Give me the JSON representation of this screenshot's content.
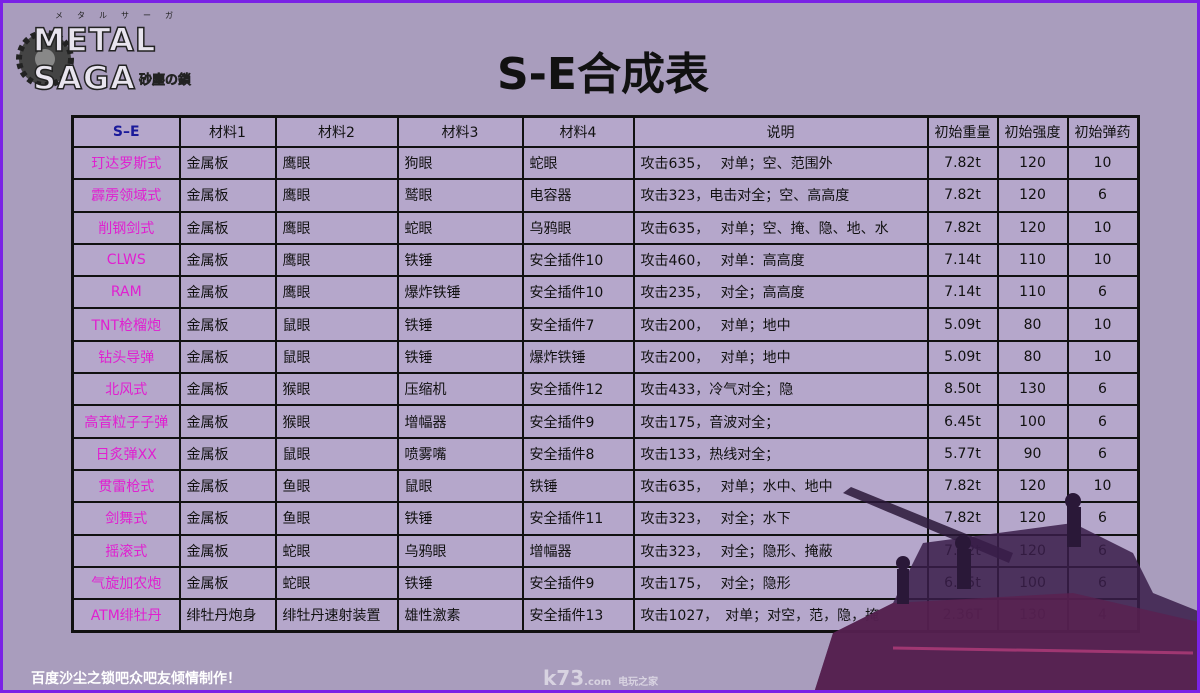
{
  "logo": {
    "text": "METAL SAGA",
    "sub": "砂塵の鎖",
    "kana": "メタルサーガ"
  },
  "title": "S-E合成表",
  "table": {
    "headers": [
      "S–E",
      "材料1",
      "材料2",
      "材料3",
      "材料4",
      "说明",
      "初始重量",
      "初始强度",
      "初始弹药"
    ],
    "rows": [
      [
        "玎达罗斯式",
        "金属板",
        "鹰眼",
        "狗眼",
        "蛇眼",
        "攻击635，　 对单；空、范围外",
        "7.82t",
        "120",
        "10"
      ],
      [
        "霹雳领域式",
        "金属板",
        "鹰眼",
        "鹫眼",
        "电容器",
        "攻击323，电击对全；空、高高度",
        "7.82t",
        "120",
        "6"
      ],
      [
        "削钢剑式",
        "金属板",
        "鹰眼",
        "蛇眼",
        "乌鸦眼",
        "攻击635，　 对单；空、掩、隐、地、水",
        "7.82t",
        "120",
        "10"
      ],
      [
        "CLWS",
        "金属板",
        "鹰眼",
        "铁锤",
        "安全插件10",
        "攻击460，　 对单：高高度",
        "7.14t",
        "110",
        "10"
      ],
      [
        "RAM",
        "金属板",
        "鹰眼",
        "爆炸铁锤",
        "安全插件10",
        "攻击235，　 对全；高高度",
        "7.14t",
        "110",
        "6"
      ],
      [
        "TNT枪榴炮",
        "金属板",
        "鼠眼",
        "铁锤",
        "安全插件7",
        "攻击200，　 对单；地中",
        "5.09t",
        "80",
        "10"
      ],
      [
        "钻头导弹",
        "金属板",
        "鼠眼",
        "铁锤",
        "爆炸铁锤",
        "攻击200，　 对单；地中",
        "5.09t",
        "80",
        "10"
      ],
      [
        "北风式",
        "金属板",
        "猴眼",
        "压缩机",
        "安全插件12",
        "攻击433，冷气对全；隐",
        "8.50t",
        "130",
        "6"
      ],
      [
        "高音粒子子弹",
        "金属板",
        "猴眼",
        "增幅器",
        "安全插件9",
        "攻击175，音波对全；",
        "6.45t",
        "100",
        "6"
      ],
      [
        "日炙弹XX",
        "金属板",
        "鼠眼",
        "喷雾嘴",
        "安全插件8",
        "攻击133，热线对全；",
        "5.77t",
        "90",
        "6"
      ],
      [
        "贯雷枪式",
        "金属板",
        "鱼眼",
        "鼠眼",
        "铁锤",
        "攻击635，　 对单；水中、地中",
        "7.82t",
        "120",
        "10"
      ],
      [
        "剑舞式",
        "金属板",
        "鱼眼",
        "铁锤",
        "安全插件11",
        "攻击323，　 对全；水下",
        "7.82t",
        "120",
        "6"
      ],
      [
        "摇滚式",
        "金属板",
        "蛇眼",
        "乌鸦眼",
        "增幅器",
        "攻击323，　 对全；隐形、掩蔽",
        "7.82t",
        "120",
        "6"
      ],
      [
        "气旋加农炮",
        "金属板",
        "蛇眼",
        "铁锤",
        "安全插件9",
        "攻击175，　 对全；隐形",
        "6.45t",
        "100",
        "6"
      ],
      [
        "ATM绯牡丹",
        "绯牡丹炮身",
        "绯牡丹速射装置",
        "雄性激素",
        "安全插件13",
        "攻击1027，　对单；对空，范，隐，掩",
        "2.36T",
        "130",
        "4"
      ]
    ]
  },
  "footer": "百度沙尘之锁吧众吧友倾情制作！",
  "watermark": {
    "main": "k73",
    "sub": "电玩之家",
    "com": ".com"
  },
  "colors": {
    "border": "#7a22e6",
    "background": "#a99dbd",
    "name_text": "#e020d0",
    "header_se": "#1a1a9a"
  }
}
